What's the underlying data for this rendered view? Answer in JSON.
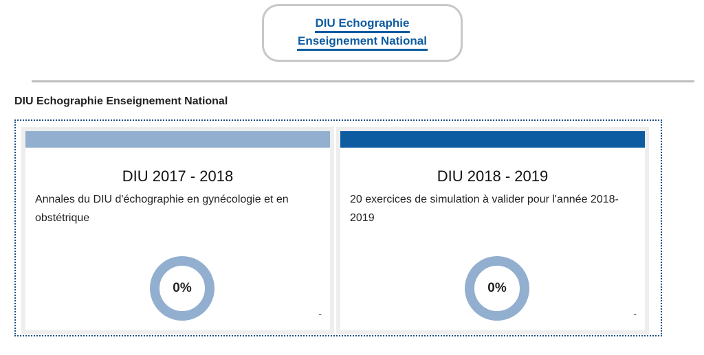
{
  "header": {
    "logo_line1": "DIU Echographie",
    "logo_line2": "Enseignement National"
  },
  "section": {
    "title": "DIU Echographie Enseignement National"
  },
  "cards": [
    {
      "title": "DIU 2017 - 2018",
      "description": "Annales du DIU d'échographie en gynécologie et en obstétrique",
      "progress_label": "0%",
      "progress": 0,
      "footer": "-",
      "band_color": "#93afcf"
    },
    {
      "title": "DIU 2018 - 2019",
      "description": "20 exercices de simulation à valider pour l'année 2018-2019",
      "progress_label": "0%",
      "progress": 0,
      "footer": "-",
      "band_color": "#0d5ba1"
    }
  ],
  "colors": {
    "brand": "#0d5ba1",
    "ring": "#93afcf",
    "divider": "#bdbdbd"
  }
}
